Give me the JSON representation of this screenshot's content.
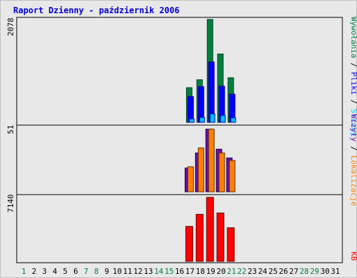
{
  "title": "Raport Dzienny -  październik 2006",
  "colors": {
    "bg": "#e8e8e8",
    "frame": "#c0c0c0",
    "title": "#0000cc",
    "weekday": "#000000",
    "weekend": "#008040",
    "visits": "#0000ff",
    "sites": "#6a0dad",
    "files": "#00bfff",
    "hits": "#008040",
    "pages": "#00bfff",
    "locations": "#ff8000",
    "kb": "#ff0000"
  },
  "right_labels": {
    "top": [
      "Wywołania",
      "Pliki",
      "Strony"
    ],
    "middle": [
      "Wizyty",
      "Lokalizacje"
    ],
    "bottom": [
      "KB"
    ],
    "sep": " / "
  },
  "chart_data": [
    {
      "type": "bar",
      "panel": "hits-files-pages",
      "categories": [
        "17",
        "18",
        "19",
        "20",
        "21"
      ],
      "ymax_label": "2078",
      "ylim": [
        0,
        2078
      ],
      "series": [
        {
          "name": "Wywołania",
          "values": [
            700,
            860,
            2078,
            1380,
            900
          ]
        },
        {
          "name": "Pliki",
          "values": [
            520,
            720,
            1220,
            730,
            570
          ]
        },
        {
          "name": "Strony",
          "values": [
            70,
            100,
            170,
            140,
            90
          ]
        }
      ]
    },
    {
      "type": "bar",
      "panel": "visits-locations",
      "categories": [
        "17",
        "18",
        "19",
        "20",
        "21"
      ],
      "ymax_label": "51",
      "ylim": [
        0,
        51
      ],
      "series": [
        {
          "name": "Wizyty",
          "values": [
            19,
            31,
            50,
            34,
            27
          ]
        },
        {
          "name": "Lokalizacje",
          "values": [
            20,
            35,
            50,
            31,
            25
          ]
        }
      ]
    },
    {
      "type": "bar",
      "panel": "kb",
      "categories": [
        "17",
        "18",
        "19",
        "20",
        "21"
      ],
      "ymax_label": "7140",
      "ylim": [
        0,
        7140
      ],
      "series": [
        {
          "name": "KB",
          "values": [
            3900,
            5250,
            7140,
            5400,
            3750
          ]
        }
      ]
    }
  ],
  "days": [
    "1",
    "2",
    "3",
    "4",
    "5",
    "6",
    "7",
    "8",
    "9",
    "10",
    "11",
    "12",
    "13",
    "14",
    "15",
    "16",
    "17",
    "18",
    "19",
    "20",
    "21",
    "22",
    "23",
    "24",
    "25",
    "26",
    "27",
    "28",
    "29",
    "30",
    "31"
  ],
  "weekend_days": [
    "1",
    "7",
    "8",
    "14",
    "15",
    "21",
    "22",
    "28",
    "29"
  ]
}
